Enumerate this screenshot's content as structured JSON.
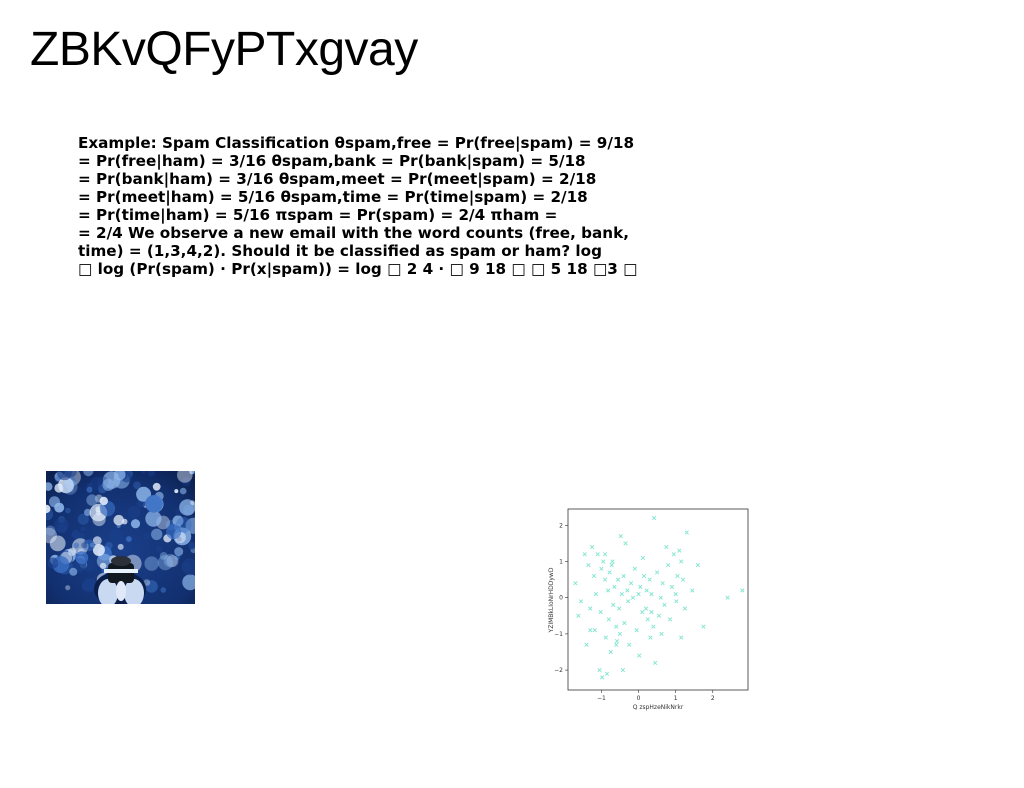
{
  "title": "ZBKvQFyPTxgvay",
  "body_lines": [
    "Example: Spam Classification θspam,free = Pr(free|spam) = 9/18",
    "= Pr(free|ham) = 3/16 θspam,bank = Pr(bank|spam) = 5/18",
    "= Pr(bank|ham) = 3/16 θspam,meet = Pr(meet|spam) = 2/18",
    "= Pr(meet|ham) = 5/16 θspam,time = Pr(time|spam) = 2/18",
    "= Pr(time|ham) = 5/16 πspam = Pr(spam) = 2/4 πham =",
    "= 2/4 We observe a new email with the word counts (free, bank,",
    "time) = (1,3,4,2). Should it be classified as spam or ham? log",
    "□ log (Pr(spam) · Pr(x|spam)) = log □ 2 4 · □ 9 18 □ □ 5 18 □3 □"
  ],
  "image": {
    "name": "photo-blue-bokeh",
    "colors": [
      "#1a3f8a",
      "#3a6fc4",
      "#8fb8ec",
      "#e8f2ff",
      "#0b1f4d"
    ]
  },
  "chart_data": {
    "type": "scatter",
    "title": "",
    "xlabel": "Q zspHzeNikNrkr",
    "ylabel": "YZIMBkLIoNrHDDywD",
    "xlim": [
      -1.9,
      2.95
    ],
    "ylim": [
      -2.55,
      2.45
    ],
    "xticks": [
      -1,
      0,
      1,
      2
    ],
    "yticks": [
      -2,
      -1,
      0,
      1,
      2
    ],
    "xtick_labels": [
      "−1",
      "0",
      "1",
      "2"
    ],
    "ytick_labels": [
      "−2",
      "−1",
      "0",
      "1",
      "2"
    ],
    "grid": false,
    "marker": "x",
    "color": "#7fe5cf",
    "series": [
      {
        "x": [
          -1.7,
          -1.62,
          -1.55,
          -1.45,
          -1.4,
          -1.35,
          -1.3,
          -1.25,
          -1.2,
          -1.18,
          -1.15,
          -1.1,
          -1.05,
          -1.02,
          -1.0,
          -0.98,
          -0.95,
          -0.9,
          -0.88,
          -0.85,
          -0.82,
          -0.8,
          -0.78,
          -0.75,
          -0.72,
          -0.7,
          -0.68,
          -0.65,
          -0.6,
          -0.58,
          -0.55,
          -0.52,
          -0.5,
          -0.48,
          -0.45,
          -0.42,
          -0.4,
          -0.38,
          -0.35,
          -0.3,
          -0.28,
          -0.25,
          -0.2,
          -0.15,
          -0.1,
          -0.05,
          0.0,
          0.02,
          0.05,
          0.1,
          0.12,
          0.15,
          0.2,
          0.22,
          0.25,
          0.3,
          0.32,
          0.35,
          0.4,
          0.42,
          0.45,
          0.5,
          0.55,
          0.6,
          0.62,
          0.65,
          0.7,
          0.75,
          0.8,
          0.85,
          0.9,
          0.95,
          1.0,
          1.02,
          1.05,
          1.1,
          1.15,
          1.2,
          1.25,
          1.3,
          1.45,
          1.6,
          1.75,
          2.4,
          2.8,
          -1.3,
          -0.9,
          0.35,
          1.15,
          -0.6
        ],
        "y": [
          0.4,
          -0.5,
          -0.1,
          1.2,
          -1.3,
          0.9,
          -0.3,
          1.4,
          0.6,
          -0.9,
          0.1,
          1.2,
          -2.0,
          -0.4,
          0.8,
          -2.2,
          1.0,
          0.5,
          -1.1,
          -2.1,
          0.2,
          -0.6,
          0.7,
          -1.5,
          0.9,
          1.0,
          -0.2,
          0.3,
          -0.8,
          -1.2,
          0.5,
          -0.3,
          -1.0,
          1.7,
          0.1,
          -2.0,
          0.6,
          -0.7,
          1.5,
          0.2,
          -0.1,
          -1.3,
          0.4,
          0.0,
          0.8,
          -0.9,
          0.1,
          -1.6,
          0.3,
          -0.4,
          1.1,
          0.6,
          -0.3,
          0.2,
          -0.6,
          0.5,
          -1.1,
          0.1,
          -0.8,
          2.2,
          -1.8,
          0.7,
          -0.5,
          0.0,
          -1.0,
          0.4,
          -0.2,
          1.4,
          0.9,
          -0.6,
          0.3,
          1.2,
          0.1,
          -0.1,
          0.6,
          1.3,
          -1.1,
          0.5,
          -0.3,
          1.8,
          0.2,
          0.9,
          -0.8,
          0.0,
          0.2,
          -0.9,
          1.2,
          -0.4,
          1.0,
          -1.3
        ]
      }
    ]
  }
}
